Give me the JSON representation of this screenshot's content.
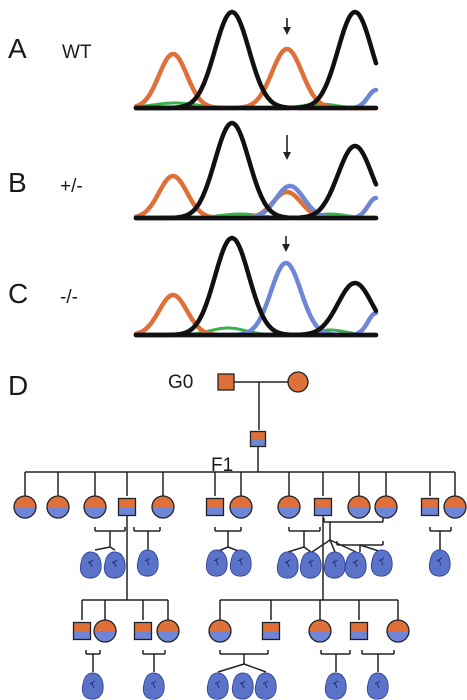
{
  "colors": {
    "orange": "#e0703a",
    "black": "#111111",
    "blue": "#6f86d6",
    "green": "#3cb04a",
    "line": "#222222",
    "fetus": "#5a73c8"
  },
  "panels": [
    {
      "letter": "A",
      "genotype": "WT"
    },
    {
      "letter": "B",
      "genotype": "+/-"
    },
    {
      "letter": "C",
      "genotype": "-/-"
    },
    {
      "letter": "D",
      "genotype": ""
    }
  ],
  "pedigree": {
    "g0_label": "G0",
    "f1_label": "F1"
  }
}
